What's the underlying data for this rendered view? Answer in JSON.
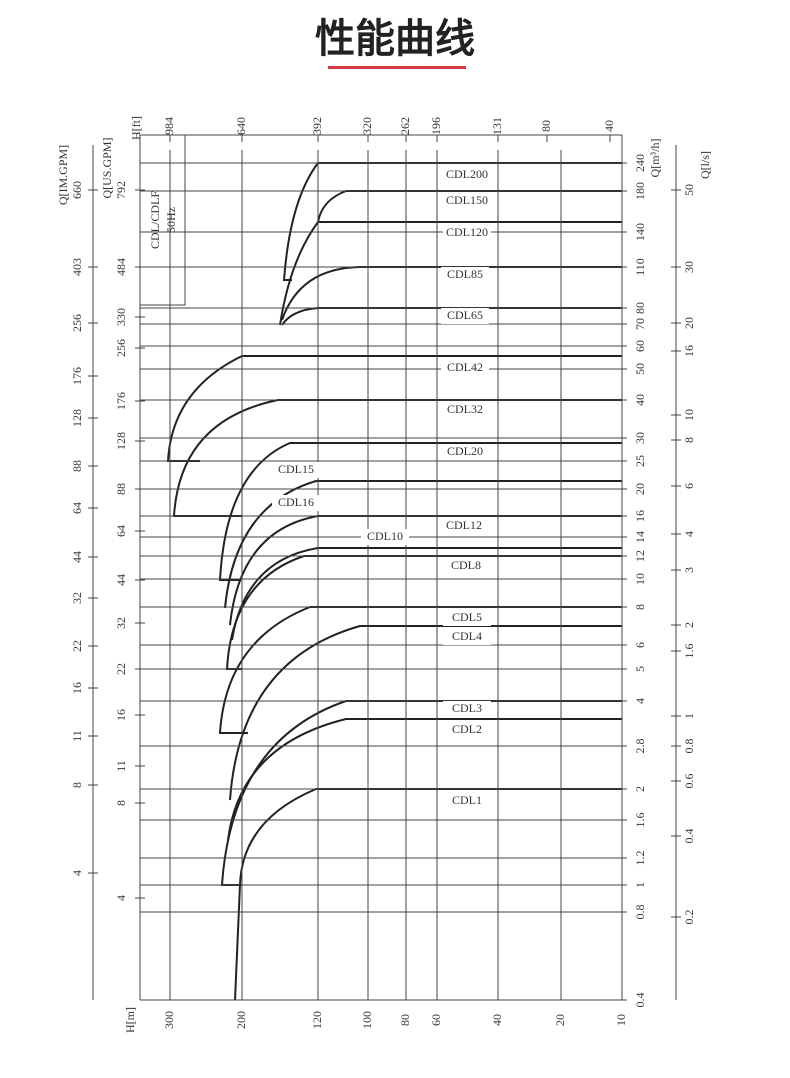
{
  "header": {
    "title": "性能曲线"
  },
  "diagram": {
    "box_label": [
      "CDL/CDLF",
      "50Hz"
    ],
    "axes": {
      "h_ft": {
        "label": "H[ft]",
        "ticks": [
          "984",
          "640",
          "392",
          "320",
          "262",
          "196",
          "131",
          "80",
          "40"
        ]
      },
      "h_m": {
        "label": "H[m]",
        "ticks": [
          "300",
          "200",
          "120",
          "100",
          "80",
          "60",
          "40",
          "20",
          "10"
        ]
      },
      "q_im_gpm": {
        "label": "Q[IM.GPM]",
        "ticks": [
          "660",
          "403",
          "256",
          "176",
          "128",
          "88",
          "64",
          "44",
          "32",
          "22",
          "16",
          "11",
          "8",
          "4"
        ]
      },
      "q_us_gpm": {
        "label": "Q[US.GPM]",
        "ticks": [
          "792",
          "484",
          "330",
          "256",
          "176",
          "128",
          "88",
          "64",
          "44",
          "32",
          "22",
          "16",
          "11",
          "8",
          "4"
        ]
      },
      "q_m3h": {
        "label": "Q[m³/h]",
        "ticks": [
          "240",
          "180",
          "140",
          "110",
          "80",
          "70",
          "60",
          "50",
          "40",
          "30",
          "25",
          "20",
          "16",
          "14",
          "12",
          "10",
          "8",
          "6",
          "5",
          "4",
          "2.8",
          "2",
          "1.6",
          "1.2",
          "1",
          "0.8",
          "0.4"
        ]
      },
      "q_ls": {
        "label": "Q[l/s]",
        "ticks": [
          "50",
          "30",
          "20",
          "16",
          "10",
          "8",
          "6",
          "4",
          "3",
          "2",
          "1.6",
          "1",
          "0.8",
          "0.6",
          "0.4",
          "0.2"
        ]
      }
    },
    "models": [
      "CDL200",
      "CDL150",
      "CDL120",
      "CDL85",
      "CDL65",
      "CDL42",
      "CDL32",
      "CDL20",
      "CDL15",
      "CDL16",
      "CDL12",
      "CDL10",
      "CDL8",
      "CDL5",
      "CDL4",
      "CDL3",
      "CDL2",
      "CDL1"
    ]
  }
}
